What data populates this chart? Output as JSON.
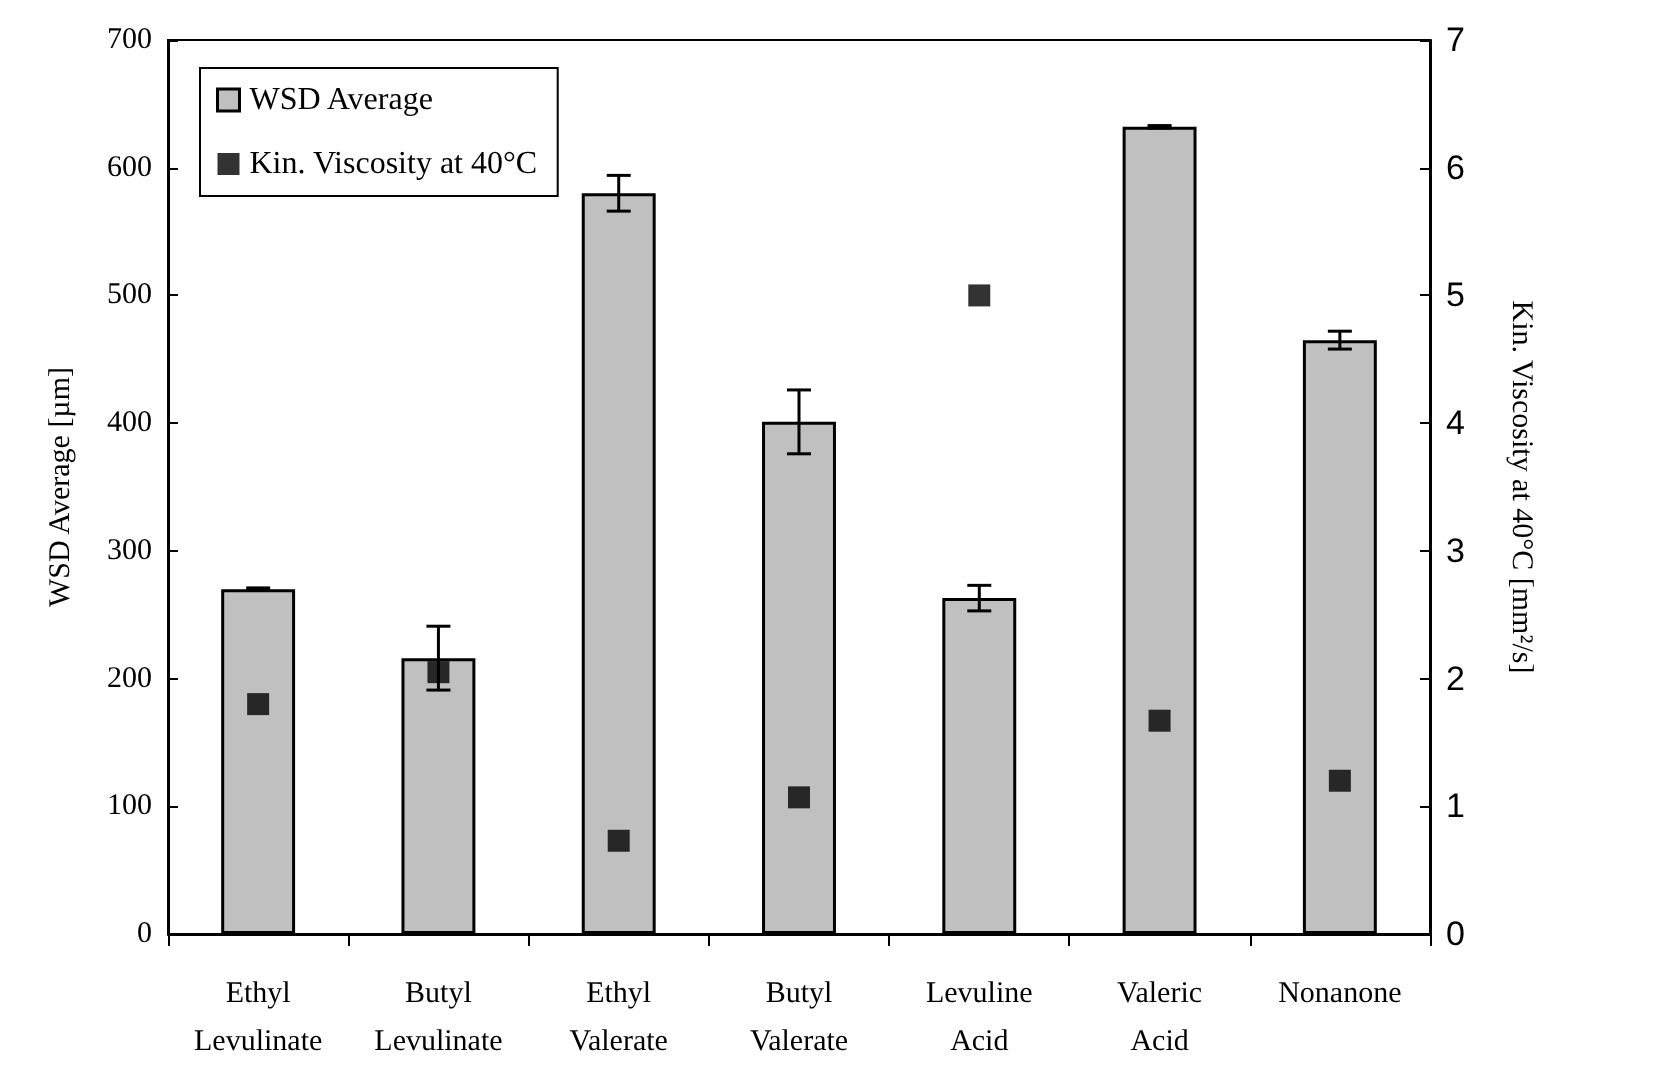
{
  "chart_data": {
    "type": "bar",
    "ylabel": "WSD Average [µm]",
    "y2label": "Kin. Viscosity at 40°C [mm²/s]",
    "categories": [
      "Ethyl Levulinate",
      "Butyl Levulinate",
      "Ethyl Valerate",
      "Butyl Valerate",
      "Levuline Acid",
      "Valeric Acid",
      "Nonanone"
    ],
    "series": [
      {
        "name": "WSD Average",
        "color": "#c0c0c0",
        "values": [
          270,
          216,
          580,
          401,
          263,
          632,
          465
        ],
        "errors": [
          1,
          25,
          14,
          25,
          10,
          1,
          7
        ]
      },
      {
        "name": "Kin. Viscosity at 40°C",
        "type": "scatter",
        "axis": "y2",
        "color": "#000000",
        "marker": "square",
        "values": [
          1.8,
          2.05,
          0.73,
          1.07,
          5.0,
          1.67,
          1.2
        ]
      }
    ],
    "ylim": [
      0,
      700
    ],
    "yticks": [
      0,
      100,
      200,
      300,
      400,
      500,
      600,
      700
    ],
    "y2lim": [
      0,
      7
    ],
    "y2ticks": [
      0,
      1,
      2,
      3,
      4,
      5,
      6,
      7
    ],
    "grid": false,
    "legend": "top left"
  }
}
